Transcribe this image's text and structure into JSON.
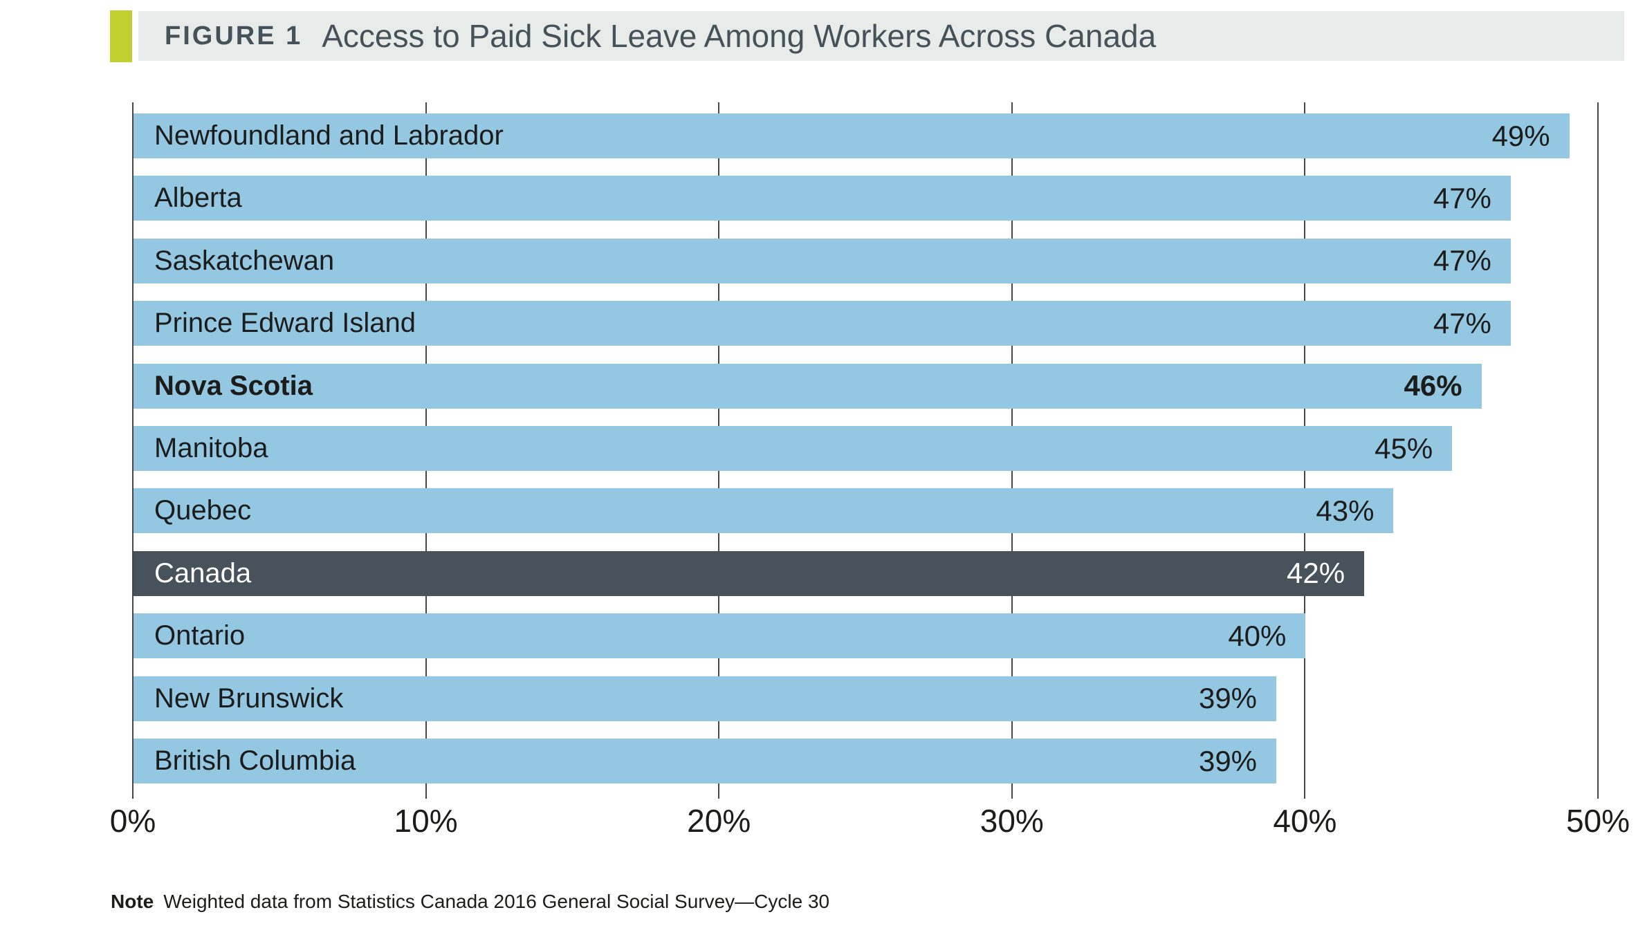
{
  "header": {
    "figure_label": "FIGURE 1",
    "title": "Access to Paid Sick Leave Among Workers Across Canada"
  },
  "note": {
    "label": "Note",
    "text": "Weighted data from Statistics Canada 2016 General Social Survey—Cycle 30"
  },
  "colors": {
    "bar": "#94c7e2",
    "highlight_bar": "#47525a",
    "highlight_text": "#ffffff",
    "accent_stripe": "#c0d02f",
    "header_band": "#e7ebea",
    "header_text": "#465259",
    "gridline": "#474747",
    "text": "#1c1c1a"
  },
  "chart_data": {
    "type": "bar",
    "orientation": "horizontal",
    "title": "Access to Paid Sick Leave Among Workers Across Canada",
    "categories": [
      "Newfoundland and Labrador",
      "Alberta",
      "Saskatchewan",
      "Prince Edward Island",
      "Nova Scotia",
      "Manitoba",
      "Quebec",
      "Canada",
      "Ontario",
      "New Brunswick",
      "British Columbia"
    ],
    "values": [
      49,
      47,
      47,
      47,
      46,
      45,
      43,
      42,
      40,
      39,
      39
    ],
    "value_labels": [
      "49%",
      "47%",
      "47%",
      "47%",
      "46%",
      "45%",
      "43%",
      "42%",
      "40%",
      "39%",
      "39%"
    ],
    "emphasized_category": "Nova Scotia",
    "highlighted_category": "Canada",
    "x_tick_labels": [
      "0%",
      "10%",
      "20%",
      "30%",
      "40%",
      "50%"
    ],
    "xlim": [
      0,
      50
    ],
    "grid": true,
    "legend": false,
    "value_label_position": "inside-end",
    "category_label_position": "inside-start"
  }
}
